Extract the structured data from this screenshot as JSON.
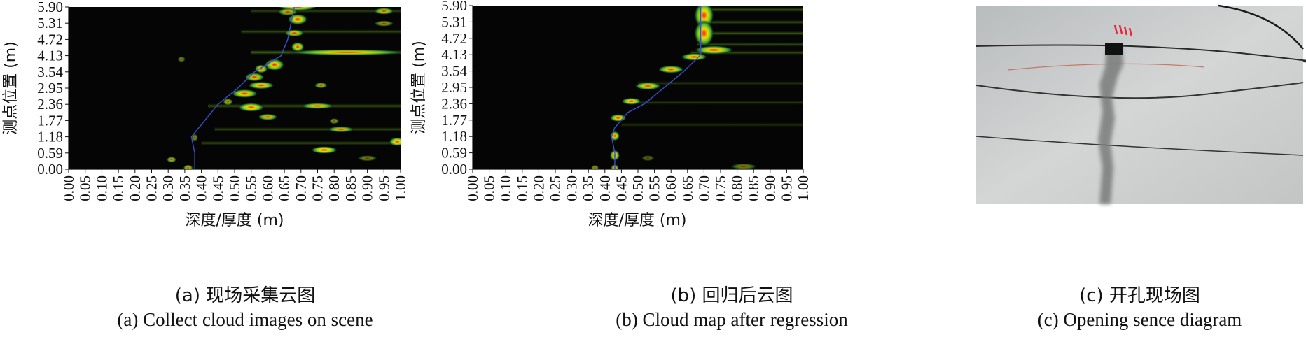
{
  "chart_data": [
    {
      "type": "heatmap",
      "caption_cn": "(a) 现场采集云图",
      "caption_en": "(a) Collect cloud images on scene",
      "xlabel": "深度/厚度 (m)",
      "ylabel": "测点位置 (m)",
      "xlim": [
        0.0,
        1.0
      ],
      "ylim": [
        0.0,
        5.9
      ],
      "x_ticks": [
        "0.00",
        "0.05",
        "0.10",
        "0.15",
        "0.20",
        "0.25",
        "0.30",
        "0.35",
        "0.40",
        "0.45",
        "0.50",
        "0.55",
        "0.60",
        "0.65",
        "0.70",
        "0.75",
        "0.80",
        "0.85",
        "0.90",
        "0.95",
        "1.00"
      ],
      "y_ticks": [
        "0.00",
        "0.59",
        "1.18",
        "1.77",
        "2.36",
        "2.95",
        "3.54",
        "4.13",
        "4.72",
        "5.31",
        "5.90"
      ],
      "colormap": [
        "#000000",
        "#1f6e3a",
        "#7ed321",
        "#ffe600",
        "#ff1a1a"
      ],
      "blobs": [
        {
          "x": 0.69,
          "y": 5.9,
          "w": 0.06,
          "h": 0.05,
          "v": 0.9
        },
        {
          "x": 0.66,
          "y": 5.72,
          "w": 0.03,
          "h": 0.06,
          "v": 0.7
        },
        {
          "x": 0.95,
          "y": 5.75,
          "w": 0.03,
          "h": 0.05,
          "v": 0.75
        },
        {
          "x": 0.69,
          "y": 5.45,
          "w": 0.03,
          "h": 0.12,
          "v": 0.9
        },
        {
          "x": 0.95,
          "y": 5.3,
          "w": 0.03,
          "h": 0.03,
          "v": 0.6
        },
        {
          "x": 0.68,
          "y": 4.95,
          "w": 0.03,
          "h": 0.05,
          "v": 0.8
        },
        {
          "x": 0.69,
          "y": 4.45,
          "w": 0.02,
          "h": 0.1,
          "v": 0.9
        },
        {
          "x": 0.84,
          "y": 4.25,
          "w": 0.18,
          "h": 0.03,
          "v": 0.85
        },
        {
          "x": 0.34,
          "y": 4.0,
          "w": 0.012,
          "h": 0.03,
          "v": 0.5
        },
        {
          "x": 0.62,
          "y": 3.8,
          "w": 0.03,
          "h": 0.14,
          "v": 0.9
        },
        {
          "x": 0.58,
          "y": 3.65,
          "w": 0.02,
          "h": 0.08,
          "v": 0.85
        },
        {
          "x": 0.56,
          "y": 3.35,
          "w": 0.03,
          "h": 0.08,
          "v": 0.85
        },
        {
          "x": 0.58,
          "y": 3.05,
          "w": 0.04,
          "h": 0.06,
          "v": 0.9
        },
        {
          "x": 0.76,
          "y": 3.05,
          "w": 0.02,
          "h": 0.03,
          "v": 0.7
        },
        {
          "x": 0.53,
          "y": 2.75,
          "w": 0.04,
          "h": 0.08,
          "v": 0.9
        },
        {
          "x": 0.48,
          "y": 2.45,
          "w": 0.015,
          "h": 0.05,
          "v": 0.7
        },
        {
          "x": 0.55,
          "y": 2.25,
          "w": 0.04,
          "h": 0.08,
          "v": 0.95
        },
        {
          "x": 0.75,
          "y": 2.3,
          "w": 0.05,
          "h": 0.03,
          "v": 0.8
        },
        {
          "x": 0.6,
          "y": 1.9,
          "w": 0.03,
          "h": 0.04,
          "v": 0.8
        },
        {
          "x": 0.8,
          "y": 1.75,
          "w": 0.015,
          "h": 0.03,
          "v": 0.6
        },
        {
          "x": 0.82,
          "y": 1.45,
          "w": 0.04,
          "h": 0.03,
          "v": 0.75
        },
        {
          "x": 0.38,
          "y": 1.15,
          "w": 0.01,
          "h": 0.06,
          "v": 0.55
        },
        {
          "x": 0.99,
          "y": 1.0,
          "w": 0.025,
          "h": 0.08,
          "v": 0.95
        },
        {
          "x": 0.77,
          "y": 0.7,
          "w": 0.04,
          "h": 0.06,
          "v": 0.95
        },
        {
          "x": 0.31,
          "y": 0.35,
          "w": 0.015,
          "h": 0.03,
          "v": 0.7
        },
        {
          "x": 0.36,
          "y": 0.05,
          "w": 0.015,
          "h": 0.04,
          "v": 0.75
        },
        {
          "x": 0.9,
          "y": 0.4,
          "w": 0.03,
          "h": 0.03,
          "v": 0.5
        }
      ],
      "ridges": [
        {
          "x0": 0.55,
          "x1": 1.0,
          "y": 4.25,
          "v": 0.55
        },
        {
          "x0": 0.42,
          "x1": 1.0,
          "y": 2.3,
          "v": 0.45
        },
        {
          "x0": 0.44,
          "x1": 1.0,
          "y": 1.45,
          "v": 0.35
        },
        {
          "x0": 0.4,
          "x1": 1.0,
          "y": 0.95,
          "v": 0.4
        },
        {
          "x0": 0.52,
          "x1": 1.0,
          "y": 5.0,
          "v": 0.35
        },
        {
          "x0": 0.55,
          "x1": 1.0,
          "y": 5.75,
          "v": 0.3
        }
      ],
      "trace": [
        [
          0.38,
          0.0
        ],
        [
          0.38,
          0.59
        ],
        [
          0.37,
          1.18
        ],
        [
          0.41,
          1.77
        ],
        [
          0.45,
          2.36
        ],
        [
          0.51,
          2.95
        ],
        [
          0.56,
          3.54
        ],
        [
          0.64,
          4.13
        ],
        [
          0.66,
          4.72
        ],
        [
          0.67,
          5.31
        ],
        [
          0.68,
          5.9
        ]
      ]
    },
    {
      "type": "heatmap",
      "caption_cn": "(b) 回归后云图",
      "caption_en": "(b) Cloud map after regression",
      "xlabel": "深度/厚度 (m)",
      "ylabel": "测点位置 (m)",
      "xlim": [
        0.0,
        1.0
      ],
      "ylim": [
        0.0,
        5.9
      ],
      "x_ticks": [
        "0.00",
        "0.05",
        "0.10",
        "0.15",
        "0.20",
        "0.25",
        "0.30",
        "0.35",
        "0.40",
        "0.45",
        "0.50",
        "0.55",
        "0.60",
        "0.65",
        "0.70",
        "0.75",
        "0.80",
        "0.85",
        "0.90",
        "0.95",
        "1.00"
      ],
      "y_ticks": [
        "0.00",
        "0.59",
        "1.18",
        "1.77",
        "2.36",
        "2.95",
        "3.54",
        "4.13",
        "4.72",
        "5.31",
        "5.90"
      ],
      "colormap": [
        "#000000",
        "#1f6e3a",
        "#7ed321",
        "#ffe600",
        "#ff1a1a"
      ],
      "blobs": [
        {
          "x": 0.7,
          "y": 5.55,
          "w": 0.03,
          "h": 0.4,
          "v": 0.95
        },
        {
          "x": 0.7,
          "y": 4.9,
          "w": 0.03,
          "h": 0.4,
          "v": 0.95
        },
        {
          "x": 0.73,
          "y": 4.3,
          "w": 0.06,
          "h": 0.08,
          "v": 0.9
        },
        {
          "x": 0.67,
          "y": 4.05,
          "w": 0.04,
          "h": 0.06,
          "v": 0.9
        },
        {
          "x": 0.6,
          "y": 3.6,
          "w": 0.04,
          "h": 0.06,
          "v": 0.9
        },
        {
          "x": 0.53,
          "y": 3.0,
          "w": 0.04,
          "h": 0.06,
          "v": 0.9
        },
        {
          "x": 0.48,
          "y": 2.45,
          "w": 0.03,
          "h": 0.05,
          "v": 0.9
        },
        {
          "x": 0.44,
          "y": 1.85,
          "w": 0.025,
          "h": 0.06,
          "v": 0.9
        },
        {
          "x": 0.43,
          "y": 1.2,
          "w": 0.015,
          "h": 0.1,
          "v": 0.9
        },
        {
          "x": 0.43,
          "y": 0.5,
          "w": 0.015,
          "h": 0.12,
          "v": 0.9
        },
        {
          "x": 0.43,
          "y": 0.05,
          "w": 0.012,
          "h": 0.05,
          "v": 0.8
        },
        {
          "x": 0.37,
          "y": 0.05,
          "w": 0.012,
          "h": 0.03,
          "v": 0.6
        },
        {
          "x": 0.82,
          "y": 0.1,
          "w": 0.04,
          "h": 0.03,
          "v": 0.5
        },
        {
          "x": 0.53,
          "y": 0.4,
          "w": 0.02,
          "h": 0.03,
          "v": 0.4
        }
      ],
      "ridges": [
        {
          "x0": 0.68,
          "x1": 1.0,
          "y": 5.75,
          "v": 0.45
        },
        {
          "x0": 0.68,
          "x1": 1.0,
          "y": 5.3,
          "v": 0.4
        },
        {
          "x0": 0.68,
          "x1": 1.0,
          "y": 4.9,
          "v": 0.4
        },
        {
          "x0": 0.68,
          "x1": 1.0,
          "y": 4.5,
          "v": 0.35
        },
        {
          "x0": 0.66,
          "x1": 1.0,
          "y": 4.2,
          "v": 0.35
        },
        {
          "x0": 0.5,
          "x1": 1.0,
          "y": 3.1,
          "v": 0.25
        },
        {
          "x0": 0.46,
          "x1": 1.0,
          "y": 2.4,
          "v": 0.25
        },
        {
          "x0": 0.45,
          "x1": 1.0,
          "y": 1.6,
          "v": 0.2
        }
      ],
      "trace": [
        [
          0.43,
          0.0
        ],
        [
          0.43,
          0.59
        ],
        [
          0.42,
          1.18
        ],
        [
          0.43,
          1.5
        ],
        [
          0.47,
          2.05
        ],
        [
          0.52,
          2.36
        ],
        [
          0.58,
          2.95
        ],
        [
          0.64,
          3.54
        ],
        [
          0.69,
          4.13
        ],
        [
          0.69,
          4.72
        ],
        [
          0.69,
          5.31
        ],
        [
          0.69,
          5.9
        ]
      ]
    }
  ],
  "figure": {
    "caption_cn": "(c) 开孔现场图",
    "caption_en": "(c) Opening sence diagram"
  }
}
